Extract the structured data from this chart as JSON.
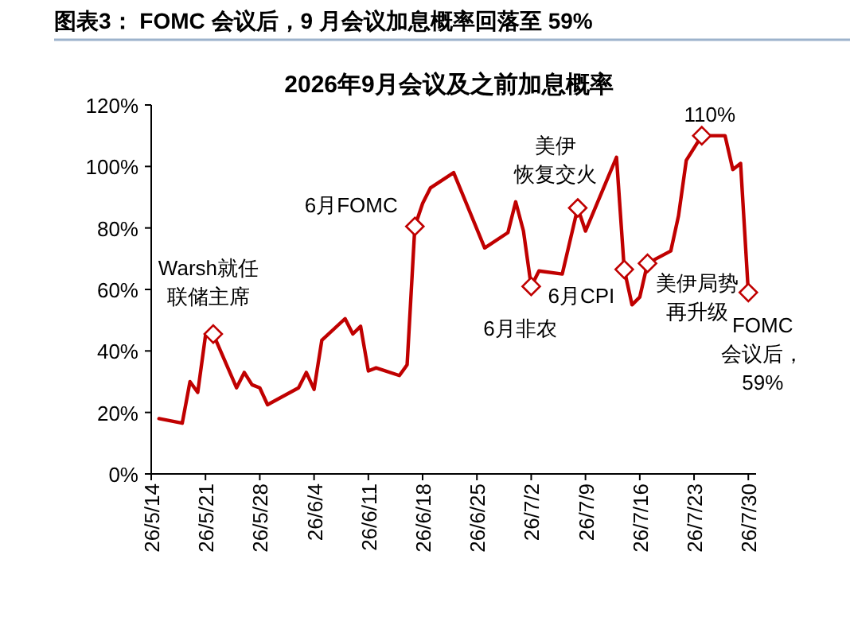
{
  "chart_data": {
    "type": "line",
    "title": "图表3：  FOMC 会议后，9 月会议加息概率回落至 59%",
    "subtitle": "2026年9月会议及之前加息概率",
    "x": [
      "2026-05-15",
      "2026-05-18",
      "2026-05-19",
      "2026-05-20",
      "2026-05-21",
      "2026-05-22",
      "2026-05-25",
      "2026-05-26",
      "2026-05-27",
      "2026-05-28",
      "2026-05-29",
      "2026-06-02",
      "2026-06-03",
      "2026-06-04",
      "2026-06-05",
      "2026-06-08",
      "2026-06-09",
      "2026-06-10",
      "2026-06-11",
      "2026-06-12",
      "2026-06-15",
      "2026-06-16",
      "2026-06-17",
      "2026-06-18",
      "2026-06-19",
      "2026-06-22",
      "2026-06-26",
      "2026-06-29",
      "2026-06-30",
      "2026-07-01",
      "2026-07-02",
      "2026-07-03",
      "2026-07-06",
      "2026-07-08",
      "2026-07-09",
      "2026-07-13",
      "2026-07-14",
      "2026-07-15",
      "2026-07-16",
      "2026-07-17",
      "2026-07-20",
      "2026-07-21",
      "2026-07-22",
      "2026-07-24",
      "2026-07-27",
      "2026-07-28",
      "2026-07-29",
      "2026-07-30"
    ],
    "series": [
      {
        "color": "#c00000",
        "values": [
          18,
          16.5,
          30,
          26.5,
          45,
          45.5,
          28,
          33,
          29,
          28,
          22.5,
          28,
          33,
          27.5,
          43.5,
          50.5,
          45.5,
          48,
          33.5,
          34.5,
          32,
          35.5,
          80.5,
          88,
          93,
          98,
          73.5,
          78.5,
          88.5,
          79,
          61,
          66,
          65,
          86.5,
          79,
          103,
          66.5,
          55,
          57.5,
          68.5,
          72.5,
          84,
          102,
          110,
          110,
          99,
          101,
          59
        ]
      }
    ],
    "xlim": [
      "2026-05-14",
      "2026-07-31"
    ],
    "xticks": [
      {
        "value": "2026-05-14",
        "label": "26/5/14"
      },
      {
        "value": "2026-05-21",
        "label": "26/5/21"
      },
      {
        "value": "2026-05-28",
        "label": "26/5/28"
      },
      {
        "value": "2026-06-04",
        "label": "26/6/4"
      },
      {
        "value": "2026-06-11",
        "label": "26/6/11"
      },
      {
        "value": "2026-06-18",
        "label": "26/6/18"
      },
      {
        "value": "2026-06-25",
        "label": "26/6/25"
      },
      {
        "value": "2026-07-02",
        "label": "26/7/2"
      },
      {
        "value": "2026-07-09",
        "label": "26/7/9"
      },
      {
        "value": "2026-07-16",
        "label": "26/7/16"
      },
      {
        "value": "2026-07-23",
        "label": "26/7/23"
      },
      {
        "value": "2026-07-30",
        "label": "26/7/30"
      }
    ],
    "ylim": [
      0,
      120
    ],
    "yticks": [
      {
        "value": 0,
        "label": "0%"
      },
      {
        "value": 20,
        "label": "20%"
      },
      {
        "value": 40,
        "label": "40%"
      },
      {
        "value": 60,
        "label": "60%"
      },
      {
        "value": 80,
        "label": "80%"
      },
      {
        "value": 100,
        "label": "100%"
      },
      {
        "value": 120,
        "label": "120%"
      }
    ],
    "grid": false,
    "marker": "none",
    "line_style": "solid",
    "annotations": [
      {
        "text": "Warsh就任联储主席",
        "x": "2026-05-22",
        "y": 45.5
      },
      {
        "text": "6月FOMC",
        "x": "2026-06-17",
        "y": 80.5
      },
      {
        "text": "6月非农",
        "x": "2026-07-02",
        "y": 61
      },
      {
        "text": "美伊恢复交火",
        "x": "2026-07-08",
        "y": 86.5
      },
      {
        "text": "6月CPI",
        "x": "2026-07-14",
        "y": 66.5
      },
      {
        "text": "美伊局势再升级",
        "x": "2026-07-17",
        "y": 68.5
      },
      {
        "text": "110%",
        "x": "2026-07-24",
        "y": 110
      },
      {
        "text": "FOMC会议后，59%",
        "x": "2026-07-30",
        "y": 59
      }
    ]
  }
}
